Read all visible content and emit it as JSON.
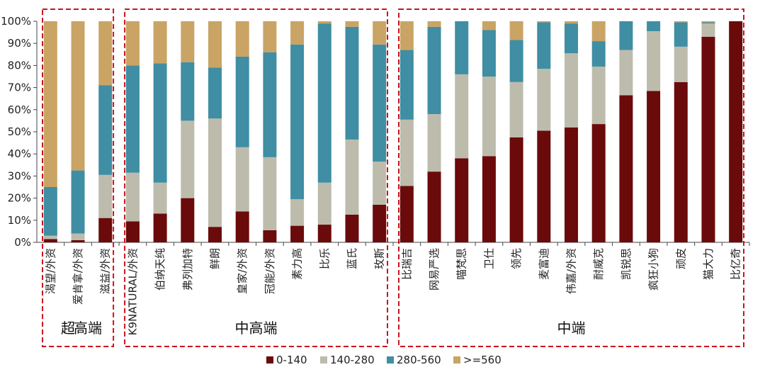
{
  "chart_data": {
    "type": "bar",
    "stacked": true,
    "normalized": true,
    "ylim": [
      0,
      100
    ],
    "y_ticks": [
      "0%",
      "10%",
      "20%",
      "30%",
      "40%",
      "50%",
      "60%",
      "70%",
      "80%",
      "90%",
      "100%"
    ],
    "categories": [
      "渴望/外资",
      "爱肯拿/外资",
      "滋益/外资",
      "K9NATURAL/外资",
      "伯纳天纯",
      "弗列加特",
      "鲜朗",
      "皇家/外资",
      "冠能/外资",
      "素力高",
      "比乐",
      "蓝氏",
      "玫斯",
      "比瑞吉",
      "网易严选",
      "喵梵思",
      "卫仕",
      "领先",
      "麦富迪",
      "伟嘉/外资",
      "耐威克",
      "凯锐思",
      "疯狂小狗",
      "顽皮",
      "猫大力",
      "比亿奇"
    ],
    "series": [
      {
        "name": "0-140",
        "color": "#6b0a0a",
        "values": [
          1.5,
          1,
          11,
          9.5,
          13,
          20,
          7,
          14,
          5.5,
          7.5,
          8,
          12.5,
          17,
          25.5,
          32,
          38,
          39,
          47.5,
          50.5,
          52,
          53.5,
          66.5,
          68.5,
          72.5,
          93,
          100
        ]
      },
      {
        "name": "140-280",
        "color": "#bdbcac",
        "values": [
          1.5,
          3,
          19.5,
          22,
          14,
          35,
          49,
          29,
          33,
          12,
          19,
          34,
          19.5,
          30,
          26,
          38,
          36,
          25,
          28,
          33.5,
          26,
          20.5,
          27,
          16,
          6,
          0
        ]
      },
      {
        "name": "280-560",
        "color": "#3f8ea3",
        "values": [
          22,
          28.5,
          40.5,
          48.5,
          54,
          26.5,
          23,
          41,
          47.5,
          70,
          72,
          51,
          53,
          31.5,
          39.5,
          24,
          21,
          19,
          21,
          13.5,
          11.5,
          13,
          4.5,
          11,
          0.5,
          0
        ]
      },
      {
        "name": ">=560",
        "color": "#c9a465",
        "values": [
          75,
          67.5,
          29,
          20,
          19,
          18.5,
          21,
          16,
          14,
          10.5,
          1,
          2.5,
          10.5,
          13,
          2.5,
          0,
          4,
          8.5,
          0.5,
          1,
          9,
          0,
          0,
          0.5,
          0.5,
          0
        ]
      }
    ],
    "groups": [
      {
        "label": "超高端",
        "start": 0,
        "end": 2
      },
      {
        "label": "中高端",
        "start": 3,
        "end": 12
      },
      {
        "label": "中端",
        "start": 13,
        "end": 25
      }
    ],
    "legend_position": "bottom-center"
  }
}
